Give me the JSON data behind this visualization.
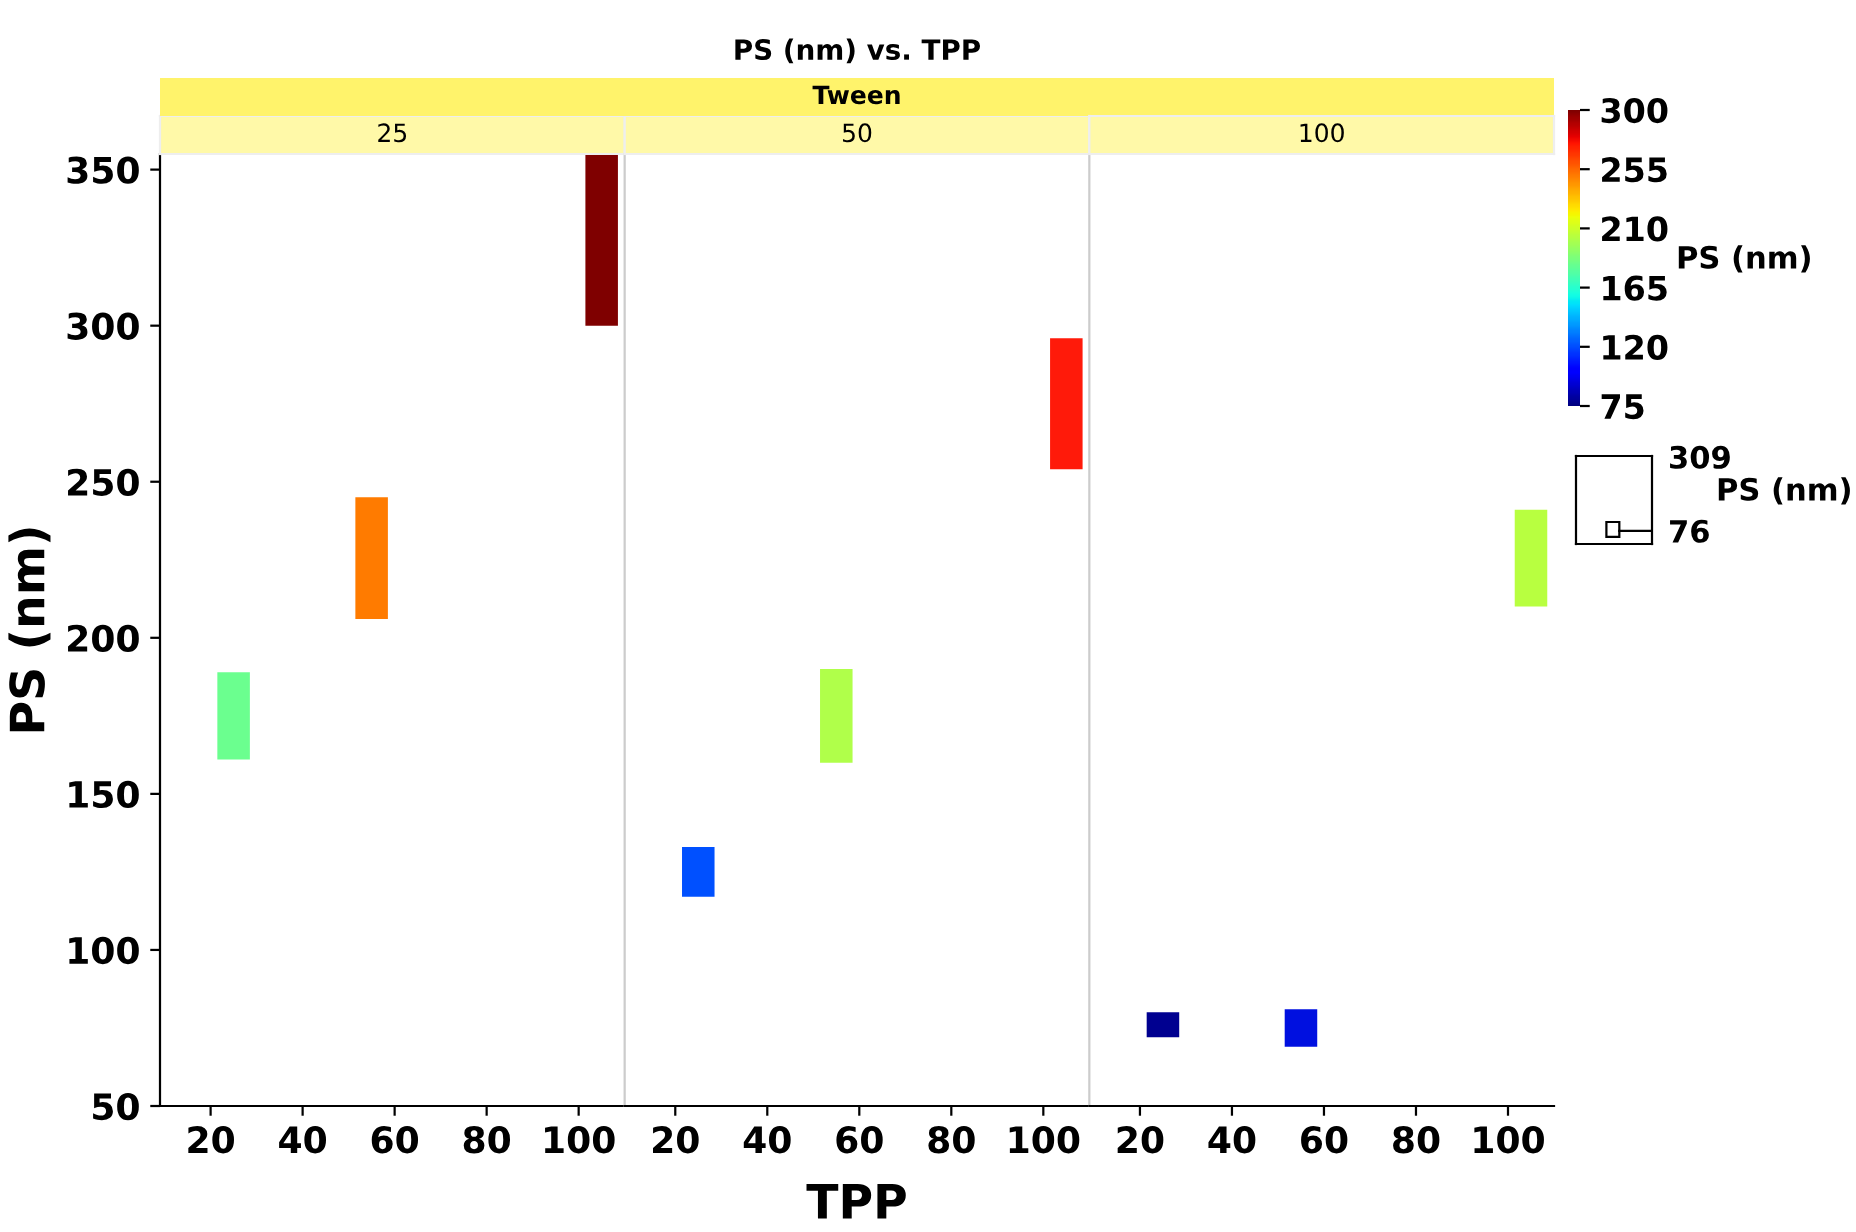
{
  "chart_data": [
    {
      "type": "bar",
      "subtitle": "25",
      "ylabel": "PS (nm)",
      "x": [
        25,
        55,
        105
      ],
      "base": [
        161,
        206,
        300
      ],
      "values": [
        28,
        39,
        55
      ],
      "colors": [
        "#6bff8f",
        "#ff7b00",
        "#7f0000"
      ],
      "xlim": [
        9,
        110
      ],
      "xticks": [
        20,
        40,
        60,
        80,
        100
      ],
      "ylim": [
        50,
        355
      ],
      "yticks": [
        50,
        100,
        150,
        200,
        250,
        300,
        350
      ],
      "grid": false
    },
    {
      "type": "bar",
      "title": "PS (nm) vs. TPP",
      "annotations": [
        "Tween"
      ],
      "subtitle": "50",
      "xlabel": "TPP",
      "tick_labels": "x",
      "x": [
        25,
        55,
        105
      ],
      "base": [
        117,
        160,
        254
      ],
      "values": [
        16,
        30,
        42
      ],
      "colors": [
        "#0050ff",
        "#b0ff4a",
        "#ff1a0a"
      ],
      "xlim": [
        9,
        110
      ],
      "xticks": [
        20,
        40,
        60,
        80,
        100
      ],
      "ylim": [
        50,
        355
      ],
      "yticks": [
        50,
        100,
        150,
        200,
        250,
        300,
        350
      ],
      "grid": false
    },
    {
      "type": "bar",
      "subtitle": "100",
      "tick_labels": "x",
      "clabel": "PS (nm)",
      "clim": [
        75,
        300
      ],
      "cticks": [
        75,
        120,
        165,
        210,
        255,
        300
      ],
      "annotations": [
        "309",
        "76",
        "PS (nm)"
      ],
      "x": [
        25,
        55,
        105
      ],
      "base": [
        72,
        69,
        210
      ],
      "values": [
        8,
        12,
        31
      ],
      "colors": [
        "#000090",
        "#0010e0",
        "#b8ff40"
      ],
      "xlim": [
        9,
        110
      ],
      "xticks": [
        20,
        40,
        60,
        80,
        100
      ],
      "ylim": [
        50,
        355
      ],
      "yticks": [
        50,
        100,
        150,
        200,
        250,
        300,
        350
      ],
      "grid": false
    }
  ]
}
